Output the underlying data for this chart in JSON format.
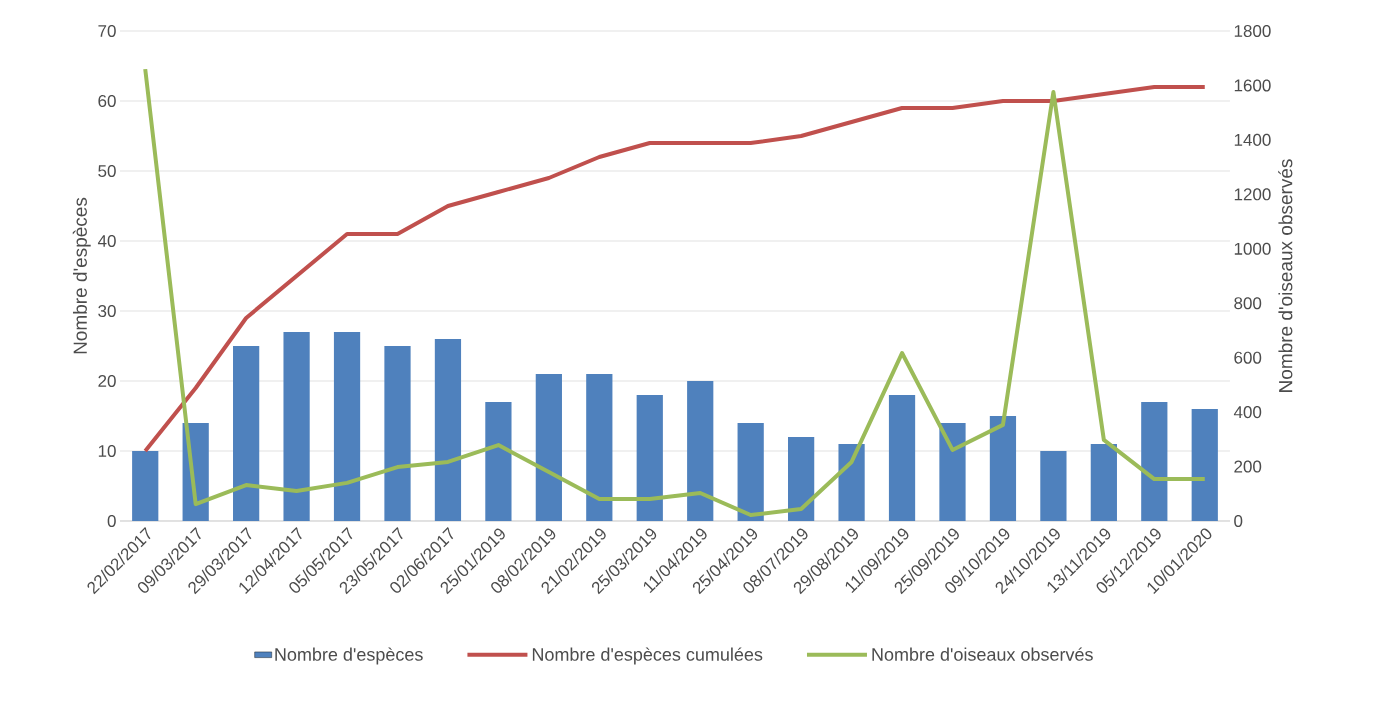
{
  "chart_data": {
    "type": "bar",
    "categories": [
      "22/02/2017",
      "09/03/2017",
      "29/03/2017",
      "12/04/2017",
      "05/05/2017",
      "23/05/2017",
      "02/06/2017",
      "25/01/2019",
      "08/02/2019",
      "21/02/2019",
      "25/03/2019",
      "11/04/2019",
      "25/04/2019",
      "08/07/2019",
      "29/08/2019",
      "11/09/2019",
      "25/09/2019",
      "09/10/2019",
      "24/10/2019",
      "13/11/2019",
      "05/12/2019",
      "10/01/2020"
    ],
    "ylabel": "Nombre d'espèces",
    "y2label": "Nombre d'oiseaux observés",
    "ylim": [
      0,
      70
    ],
    "yticks": [
      0,
      10,
      20,
      30,
      40,
      50,
      60,
      70
    ],
    "y2lim": [
      0,
      1800
    ],
    "y2ticks": [
      0,
      200,
      400,
      600,
      800,
      1000,
      1200,
      1400,
      1600,
      1800
    ],
    "grid": "y",
    "legend": "bottom",
    "marker": "none",
    "series": [
      {
        "name": "Nombre d'espèces",
        "color": "#4f81bd",
        "values": [
          10,
          14,
          25,
          27,
          27,
          25,
          26,
          17,
          21,
          21,
          18,
          20,
          14,
          12,
          11,
          18,
          14,
          15,
          10,
          11,
          17,
          16
        ]
      },
      {
        "name": "Nombre d'espèces cumulées",
        "type": "line",
        "color": "#c0504d",
        "values": [
          10,
          19,
          29,
          35,
          41,
          41,
          45,
          47,
          49,
          52,
          54,
          54,
          54,
          55,
          57,
          59,
          59,
          60,
          60,
          61,
          62,
          62
        ]
      },
      {
        "name": "Nombre d'oiseaux observés",
        "type": "line",
        "color": "#9bbb59",
        "axis": "y2",
        "values": [
          1660,
          62,
          132,
          110,
          140,
          198,
          217,
          279,
          180,
          81,
          81,
          103,
          22,
          44,
          217,
          617,
          261,
          353,
          1576,
          298,
          154,
          154
        ]
      }
    ]
  }
}
